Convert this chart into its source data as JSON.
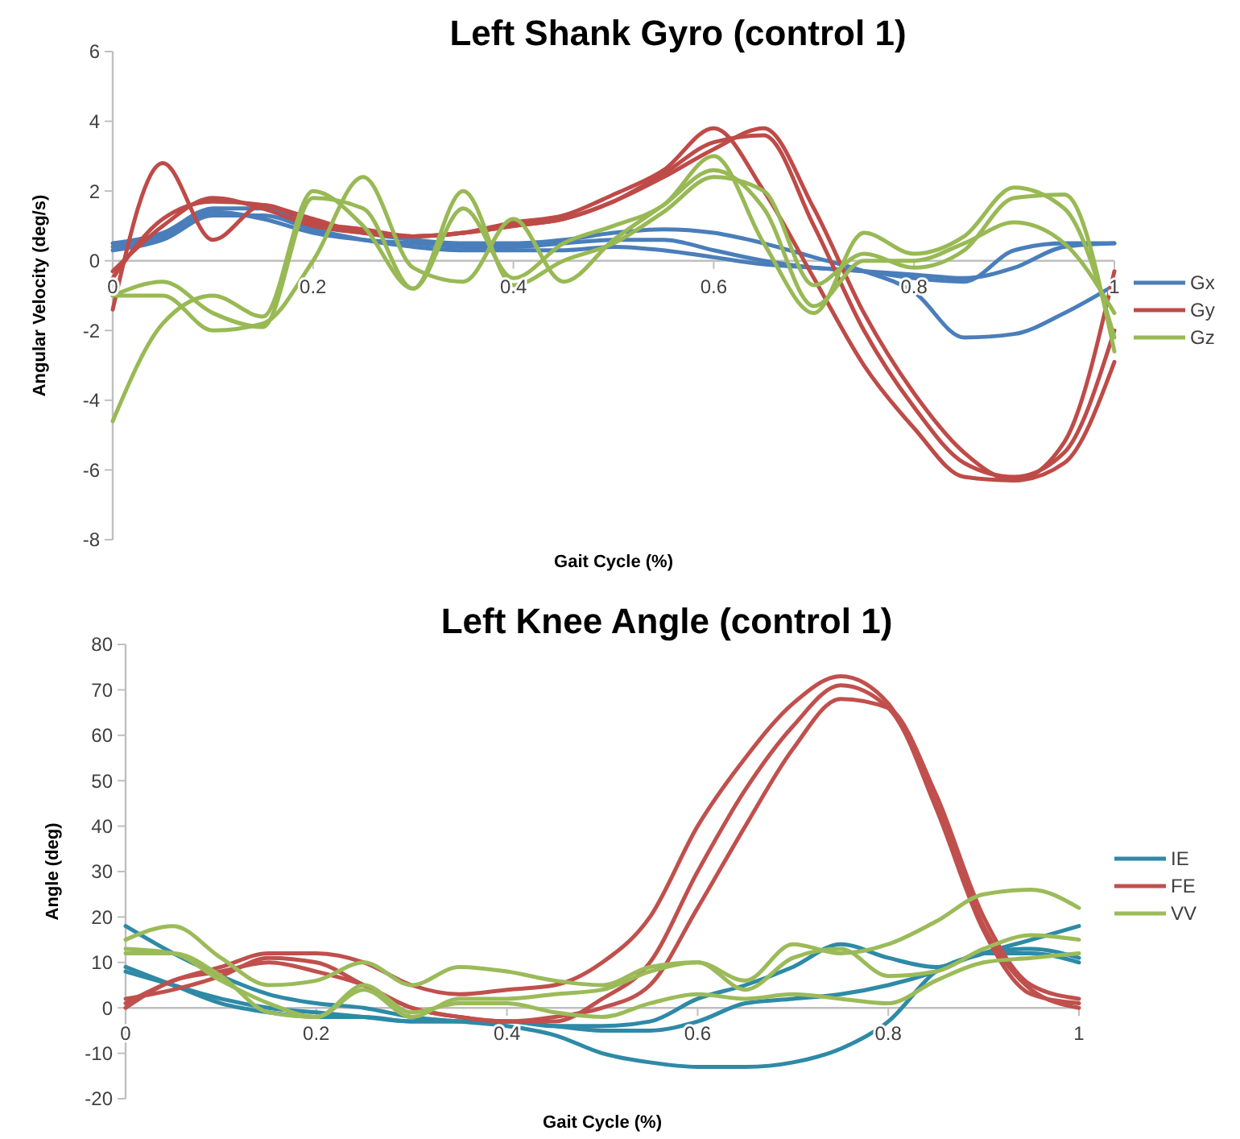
{
  "chart_data": [
    {
      "type": "line",
      "title": "Left Shank Gyro (control 1)",
      "xlabel": "Gait Cycle (%)",
      "ylabel": "Angular Velocity (deg/s)",
      "x": [
        0,
        0.05,
        0.1,
        0.15,
        0.2,
        0.25,
        0.3,
        0.35,
        0.4,
        0.45,
        0.5,
        0.55,
        0.6,
        0.65,
        0.7,
        0.75,
        0.8,
        0.85,
        0.9,
        0.95,
        1
      ],
      "xlim": [
        0,
        1
      ],
      "xticks": [
        0,
        0.2,
        0.4,
        0.6,
        0.8,
        1
      ],
      "ylim": [
        -8,
        6
      ],
      "yticks": [
        -8,
        -6,
        -4,
        -2,
        0,
        2,
        4,
        6
      ],
      "grid": false,
      "legend": "right",
      "marker": "none",
      "line_style": "solid",
      "series": [
        {
          "name": "Gx",
          "color": "#4a7ebb",
          "values": [
            0.5,
            0.8,
            1.5,
            1.5,
            1.1,
            0.8,
            0.6,
            0.5,
            0.5,
            0.6,
            0.8,
            0.9,
            0.8,
            0.5,
            0.1,
            -0.3,
            -0.9,
            -2.2,
            -2.1,
            -1.5,
            -0.7
          ]
        },
        {
          "color": "#4a7ebb",
          "values": [
            0.3,
            0.6,
            1.3,
            1.3,
            0.9,
            0.6,
            0.4,
            0.3,
            0.3,
            0.3,
            0.4,
            0.3,
            0.1,
            -0.1,
            -0.2,
            -0.3,
            -0.4,
            -0.5,
            -0.2,
            0.4,
            0.5
          ]
        },
        {
          "color": "#4a7ebb",
          "values": [
            0.4,
            0.7,
            1.4,
            1.2,
            0.8,
            0.6,
            0.5,
            0.4,
            0.4,
            0.5,
            0.6,
            0.6,
            0.3,
            0.0,
            -0.2,
            -0.3,
            -0.5,
            -0.6,
            0.3,
            0.5,
            0.5
          ]
        },
        {
          "name": "Gy",
          "color": "#be4b48",
          "values": [
            -1.4,
            2.8,
            0.6,
            1.6,
            1.1,
            0.9,
            0.7,
            0.8,
            1.1,
            1.3,
            1.9,
            2.6,
            3.8,
            2.0,
            -0.5,
            -3.0,
            -4.8,
            -6.2,
            -6.3,
            -5.2,
            -0.3
          ]
        },
        {
          "color": "#be4b48",
          "values": [
            -0.5,
            1.2,
            1.7,
            1.6,
            1.2,
            0.8,
            0.7,
            0.8,
            1.0,
            1.2,
            1.7,
            2.5,
            3.4,
            3.6,
            1.0,
            -2.0,
            -4.2,
            -5.8,
            -6.2,
            -5.5,
            -2.0
          ]
        },
        {
          "color": "#be4b48",
          "values": [
            -0.3,
            1.0,
            1.8,
            1.5,
            1.0,
            0.8,
            0.7,
            0.8,
            1.0,
            1.2,
            1.7,
            2.4,
            3.2,
            3.8,
            1.5,
            -1.5,
            -3.8,
            -5.5,
            -6.3,
            -5.8,
            -2.9
          ]
        },
        {
          "name": "Gz",
          "color": "#98b954",
          "values": [
            -4.6,
            -1.8,
            -1.0,
            -1.6,
            2.0,
            1.0,
            -0.8,
            1.5,
            -0.5,
            0.5,
            1.0,
            1.6,
            3.0,
            0.5,
            -1.5,
            0.8,
            0.2,
            0.7,
            2.1,
            1.5,
            -2.2
          ]
        },
        {
          "color": "#98b954",
          "values": [
            -1.0,
            -1.0,
            -2.0,
            -1.8,
            0.0,
            2.4,
            -0.2,
            -0.6,
            1.2,
            -0.6,
            0.6,
            1.6,
            2.6,
            1.5,
            -1.3,
            0.0,
            0.0,
            0.5,
            1.1,
            0.5,
            -1.5
          ]
        },
        {
          "color": "#98b954",
          "values": [
            -1.0,
            -0.6,
            -1.5,
            -1.9,
            1.8,
            1.5,
            -0.8,
            2.0,
            -0.7,
            0.0,
            0.5,
            1.4,
            2.4,
            2.0,
            -0.7,
            0.2,
            -0.2,
            0.3,
            1.8,
            1.9,
            -2.6
          ]
        }
      ]
    },
    {
      "type": "line",
      "title": "Left Knee Angle (control 1)",
      "xlabel": "Gait Cycle (%)",
      "ylabel": "Angle (deg)",
      "x": [
        0,
        0.05,
        0.1,
        0.15,
        0.2,
        0.25,
        0.3,
        0.35,
        0.4,
        0.45,
        0.5,
        0.55,
        0.6,
        0.65,
        0.7,
        0.75,
        0.8,
        0.85,
        0.9,
        0.95,
        1
      ],
      "xlim": [
        0,
        1
      ],
      "xticks": [
        0,
        0.2,
        0.4,
        0.6,
        0.8,
        1
      ],
      "ylim": [
        -20,
        80
      ],
      "yticks": [
        -20,
        -10,
        0,
        10,
        20,
        30,
        40,
        50,
        60,
        70,
        80
      ],
      "grid": false,
      "legend": "right",
      "marker": "none",
      "line_style": "solid",
      "series": [
        {
          "name": "IE",
          "color": "#2e8aa6",
          "values": [
            18,
            12,
            7,
            3,
            1,
            0,
            -2,
            -3,
            -4,
            -6,
            -10,
            -12,
            -13,
            -13,
            -12,
            -9,
            -3,
            8,
            12,
            15,
            18
          ]
        },
        {
          "color": "#2e8aa6",
          "values": [
            9,
            5,
            1,
            -1,
            -2,
            -2,
            -3,
            -3,
            -3,
            -4,
            -4,
            -3,
            2,
            5,
            9,
            14,
            11,
            9,
            12,
            13,
            11
          ]
        },
        {
          "color": "#2e8aa6",
          "values": [
            8,
            5,
            2,
            0,
            -1,
            -2,
            -3,
            -3,
            -3,
            -4,
            -5,
            -5,
            -3,
            1,
            2,
            3,
            5,
            8,
            12,
            12,
            10
          ]
        },
        {
          "name": "FE",
          "color": "#c0504d",
          "values": [
            1,
            6,
            9,
            12,
            12,
            10,
            5,
            3,
            4,
            5,
            10,
            20,
            40,
            55,
            67,
            73,
            67,
            44,
            17,
            3,
            1
          ]
        },
        {
          "color": "#c0504d",
          "values": [
            2,
            4,
            7,
            11,
            10,
            5,
            0,
            -2,
            -3,
            -3,
            2,
            10,
            30,
            48,
            62,
            71,
            66,
            45,
            18,
            4,
            0
          ]
        },
        {
          "color": "#c0504d",
          "values": [
            0,
            6,
            8,
            10,
            8,
            5,
            0,
            -2,
            -3,
            -2,
            0,
            5,
            22,
            40,
            57,
            68,
            66,
            47,
            20,
            5,
            2
          ]
        },
        {
          "name": "VV",
          "color": "#9bbb59",
          "values": [
            15,
            18,
            11,
            5,
            6,
            10,
            5,
            9,
            8,
            6,
            5,
            9,
            10,
            6,
            14,
            12,
            14,
            19,
            25,
            26,
            22
          ]
        },
        {
          "color": "#9bbb59",
          "values": [
            13,
            12,
            6,
            1,
            -2,
            4,
            -2,
            2,
            2,
            3,
            4,
            8,
            10,
            4,
            11,
            13,
            7,
            8,
            13,
            16,
            15
          ]
        },
        {
          "color": "#9bbb59",
          "values": [
            12,
            12,
            7,
            -1,
            -2,
            5,
            -1,
            1,
            1,
            -1,
            -2,
            1,
            3,
            2,
            3,
            2,
            1,
            6,
            10,
            11,
            12
          ]
        }
      ]
    }
  ]
}
